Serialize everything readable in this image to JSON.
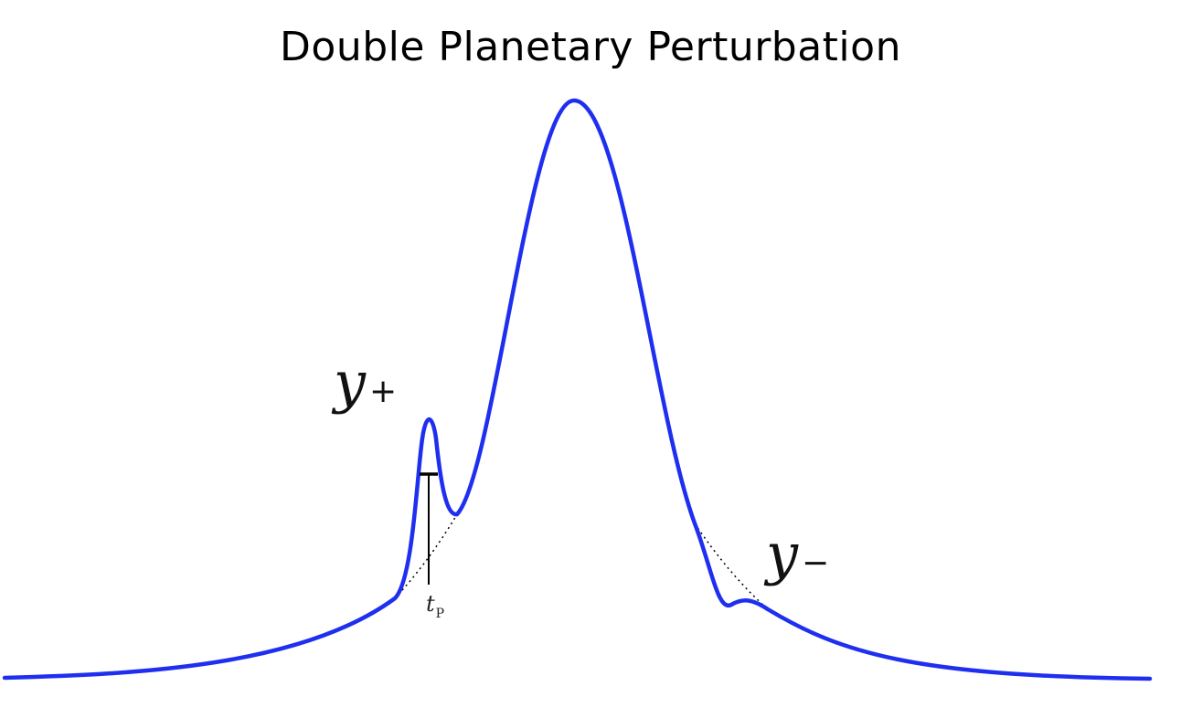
{
  "title": "Double Planetary Perturbation",
  "labels": {
    "y_plus": {
      "base": "y",
      "subscript": "+"
    },
    "y_minus": {
      "base": "y",
      "subscript": "−"
    },
    "t_p": {
      "base": "t",
      "subscript": "P"
    }
  },
  "colors": {
    "curve": "#1f2ff0",
    "baseline_dotted": "#000000",
    "marker": "#000000"
  }
}
